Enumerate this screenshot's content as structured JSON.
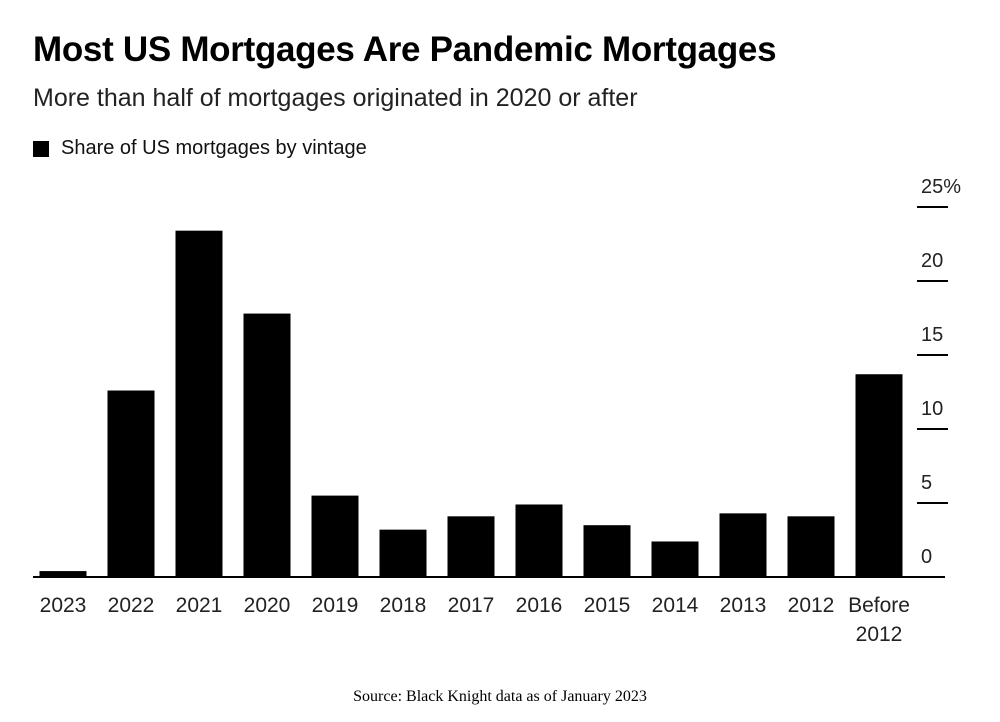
{
  "chart_data": {
    "type": "bar",
    "title": "Most US Mortgages Are Pandemic Mortgages",
    "subtitle": "More than half of mortgages originated in 2020 or after",
    "legend": {
      "label": "Share of US mortgages by vintage",
      "position": "top-left"
    },
    "categories": [
      "2023",
      "2022",
      "2021",
      "2020",
      "2019",
      "2018",
      "2017",
      "2016",
      "2015",
      "2014",
      "2013",
      "2012",
      "Before 2012"
    ],
    "values": [
      0.4,
      12.6,
      23.4,
      17.8,
      5.5,
      3.2,
      4.1,
      4.9,
      3.5,
      2.4,
      4.3,
      4.1,
      13.7
    ],
    "bar_color": "#000000",
    "ylim": [
      0,
      25
    ],
    "y_ticks": [
      "0",
      "5",
      "10",
      "15",
      "20",
      "25%"
    ],
    "y_axis_side": "right",
    "xlabel": "",
    "ylabel": "",
    "grid": false
  },
  "source": "Source: Black Knight data as of January 2023"
}
